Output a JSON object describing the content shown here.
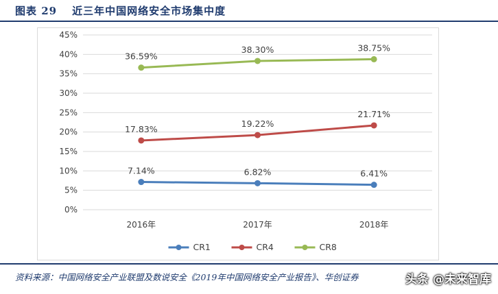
{
  "figure": {
    "label": "图表 29",
    "title": "近三年中国网络安全市场集中度"
  },
  "source": "资料来源：中国网络安全产业联盟及数说安全《2019年中国网络安全产业报告》、华创证券",
  "watermark": "头条 @未来智库",
  "chart_data": {
    "type": "line",
    "categories": [
      "2016年",
      "2017年",
      "2018年"
    ],
    "y_ticks": [
      "0%",
      "5%",
      "10%",
      "15%",
      "20%",
      "25%",
      "30%",
      "35%",
      "40%",
      "45%"
    ],
    "ylim": [
      0,
      45
    ],
    "grid": true,
    "legend_position": "bottom",
    "series": [
      {
        "name": "CR1",
        "color": "#4a7ebb",
        "values": [
          7.14,
          6.82,
          6.41
        ],
        "labels": [
          "7.14%",
          "6.82%",
          "6.41%"
        ]
      },
      {
        "name": "CR4",
        "color": "#be4b48",
        "values": [
          17.83,
          19.22,
          21.71
        ],
        "labels": [
          "17.83%",
          "19.22%",
          "21.71%"
        ]
      },
      {
        "name": "CR8",
        "color": "#98b954",
        "values": [
          36.59,
          38.3,
          38.75
        ],
        "labels": [
          "36.59%",
          "38.30%",
          "38.75%"
        ]
      }
    ]
  }
}
